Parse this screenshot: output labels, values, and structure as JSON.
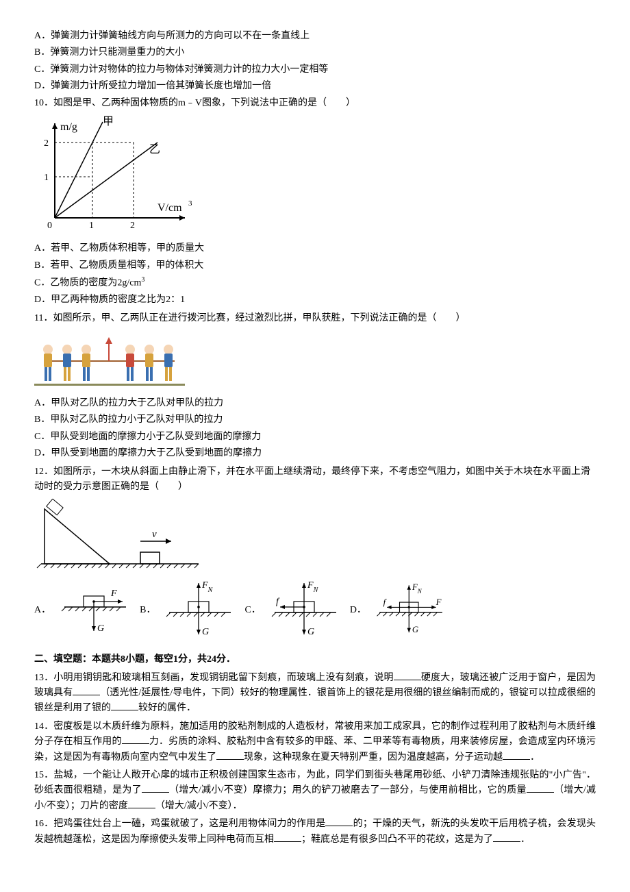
{
  "q9_options": {
    "a": "A．弹簧测力计弹簧轴线方向与所测力的方向可以不在一条直线上",
    "b": "B．弹簧测力计只能测量重力的大小",
    "c": "C．弹簧测力计对物体的拉力与物体对弹簧测力计的拉力大小一定相等",
    "d": "D．弹簧测力计所受拉力增加一倍其弹簧长度也增加一倍"
  },
  "q10": {
    "stem": "10．如图是甲、乙两种固体物质的m﹣V图象，下列说法中正确的是（　　）",
    "graph": {
      "xlabel": "V/cm",
      "ylabel": "m/g",
      "ymax": 2.5,
      "xmax": 2.8,
      "yticks": [
        1,
        2
      ],
      "xticks": [
        1,
        2
      ],
      "line_jia": {
        "label": "甲",
        "points": [
          [
            0,
            0
          ],
          [
            1,
            2
          ],
          [
            1.3,
            2.6
          ]
        ]
      },
      "line_yi": {
        "label": "乙",
        "points": [
          [
            0,
            0
          ],
          [
            2,
            2
          ],
          [
            2.5,
            2.5
          ]
        ]
      },
      "axis_color": "#000000",
      "line_color": "#000000",
      "dash_color": "#000000"
    },
    "options": {
      "a": "A．若甲、乙物质体积相等，甲的质量大",
      "b": "B．若甲、乙物质质量相等，甲的体积大",
      "c": "C．乙物质的密度为2g/cm",
      "d": "D．甲乙两种物质的密度之比为2：1"
    }
  },
  "q11": {
    "stem": "11．如图所示，甲、乙两队正在进行拨河比赛，经过激烈比拼，甲队获胜，下列说法正确的是（　　）",
    "image": {
      "people_colors": [
        "#D6A23D",
        "#3A6FB0",
        "#D6A23D",
        "#3A6FB0",
        "#C84A3A",
        "#D6A23D",
        "#3A6FB0"
      ],
      "rope_color": "#A06030",
      "ground_color": "#8A8A5A"
    },
    "options": {
      "a": "A．甲队对乙队的拉力大于乙队对甲队的拉力",
      "b": "B．甲队对乙队的拉力小于乙队对甲队的拉力",
      "c": "C．甲队受到地面的摩擦力小于乙队受到地面的摩擦力",
      "d": "D．甲队受到地面的摩擦力大于乙队受到地面的摩擦力"
    }
  },
  "q12": {
    "stem": "12．如图所示，一木块从斜面上由静止滑下，并在水平面上继续滑动，最终停下来，不考虑空气阻力，如图中关于木块在水平面上滑动时的受力示意图正确的是（　　）",
    "labels": {
      "v": "v",
      "F": "F",
      "FN": "Fɴ",
      "G": "G",
      "f": "f"
    },
    "opt_labels": {
      "a": "A．",
      "b": "B．",
      "c": "C．",
      "d": "D．"
    }
  },
  "section2": {
    "title": "二、填空题：本题共8小题，每空1分，共24分．",
    "q13": "13．小明用铜钥匙和玻璃相互刻画，发现铜钥匙留下刻痕，而玻璃上没有刻痕，说明____硬度大，玻璃还被广泛用于窗户，是因为玻璃具有____（透光性/延展性/导电件，下同）较好的物理属性．银首饰上的银花是用很细的银丝编制而成的，银锭可以拉成很细的银丝是利用了银的____较好的属件．",
    "q14": "14．密度板是以木质纤维为原料，施加适用的胶粘剂制成的人造板材，常被用来加工成家具，它的制作过程利用了胶粘剂与木质纤维分子存在相互作用的____力．劣质的涂料、胶粘剂中含有较多的甲醛、苯、二甲苯等有毒物质，用来装修房屋，会造成室内环境污染，这是因为有毒物质向室内空气中发生了____现象，这种现象在夏天特别严重，因为温度越高，分子运动越____．",
    "q15": "15．盐城，一个能让人敞开心扉的城市正积极创建国家生态市，为此，同学们到街头巷尾用砂纸、小铲刀清除违规张贴的\"小广告\"．砂纸表面很粗糙，是为了____（增大/减小/不变）摩擦力；用久的铲刀被磨去了一部分，与使用前相比，它的质量____（增大/减小/不变）；刀片的密度____（增大/减小/不变）．",
    "q16": "16．把鸡蛋往灶台上一磕，鸡蛋就破了，这是利用物体间力的作用是____的；干燥的天气，新洗的头发吹干后用梳子梳，会发现头发越梳越蓬松，这是因为摩擦使头发带上同种电荷而互相____；鞋底总是有很多凹凸不平的花纹，这是为了____．"
  }
}
